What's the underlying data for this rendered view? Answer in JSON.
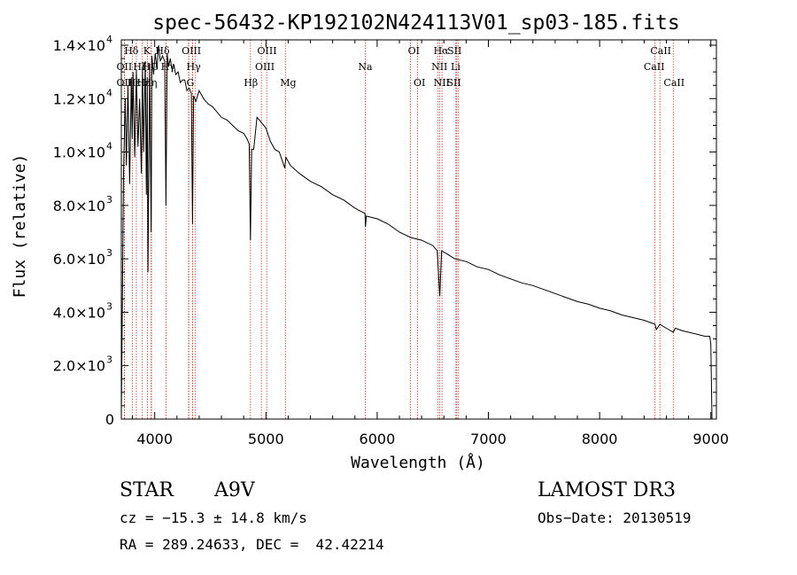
{
  "chart_data": {
    "type": "line",
    "title": "spec-56432-KP192102N424113V01_sp03-185.fits",
    "xlabel": "Wavelength (Å)",
    "ylabel": "Flux (relative)",
    "xlim": [
      3700,
      9050
    ],
    "ylim": [
      0,
      14200
    ],
    "x_ticks": [
      {
        "value": 4000,
        "label": "4000"
      },
      {
        "value": 5000,
        "label": "5000"
      },
      {
        "value": 6000,
        "label": "6000"
      },
      {
        "value": 7000,
        "label": "7000"
      },
      {
        "value": 8000,
        "label": "8000"
      },
      {
        "value": 9000,
        "label": "9000"
      }
    ],
    "y_ticks": [
      {
        "value": 0,
        "mant": "0",
        "exp": ""
      },
      {
        "value": 2000,
        "mant": "2.0×10",
        "exp": "3"
      },
      {
        "value": 4000,
        "mant": "4.0×10",
        "exp": "3"
      },
      {
        "value": 6000,
        "mant": "6.0×10",
        "exp": "3"
      },
      {
        "value": 8000,
        "mant": "8.0×10",
        "exp": "3"
      },
      {
        "value": 10000,
        "mant": "1.0×10",
        "exp": "4"
      },
      {
        "value": 12000,
        "mant": "1.2×10",
        "exp": "4"
      },
      {
        "value": 14000,
        "mant": "1.4×10",
        "exp": "4"
      }
    ],
    "series": [
      {
        "name": "spectrum",
        "x": [
          3700,
          3720,
          3735,
          3745,
          3760,
          3775,
          3790,
          3798,
          3805,
          3820,
          3835,
          3850,
          3865,
          3880,
          3890,
          3900,
          3915,
          3925,
          3933,
          3940,
          3955,
          3968,
          3975,
          3990,
          4005,
          4020,
          4035,
          4050,
          4070,
          4090,
          4101,
          4112,
          4125,
          4140,
          4155,
          4170,
          4190,
          4210,
          4230,
          4250,
          4270,
          4290,
          4310,
          4330,
          4340,
          4350,
          4370,
          4400,
          4440,
          4480,
          4520,
          4560,
          4600,
          4650,
          4700,
          4750,
          4800,
          4830,
          4850,
          4861,
          4872,
          4890,
          4920,
          4960,
          5000,
          5040,
          5080,
          5120,
          5170,
          5180,
          5220,
          5300,
          5400,
          5500,
          5600,
          5700,
          5800,
          5890,
          5896,
          5902,
          6000,
          6100,
          6200,
          6300,
          6400,
          6500,
          6540,
          6563,
          6580,
          6620,
          6700,
          6800,
          6900,
          7000,
          7100,
          7200,
          7300,
          7400,
          7500,
          7600,
          7700,
          7800,
          7900,
          8000,
          8100,
          8200,
          8300,
          8400,
          8498,
          8510,
          8542,
          8560,
          8600,
          8662,
          8680,
          8750,
          8850,
          8950,
          8990,
          9000,
          9010
        ],
        "y": [
          0,
          9200,
          12000,
          9500,
          12500,
          8800,
          12800,
          10500,
          13000,
          9800,
          13100,
          10200,
          12000,
          9200,
          13200,
          10000,
          13400,
          8400,
          12800,
          5500,
          13300,
          7000,
          13600,
          12900,
          13700,
          13100,
          14000,
          13400,
          13600,
          13400,
          8000,
          13700,
          13200,
          13500,
          13100,
          13300,
          12900,
          13000,
          12600,
          12700,
          12700,
          12300,
          12400,
          12200,
          7300,
          12100,
          11900,
          12300,
          12000,
          11800,
          11700,
          11500,
          11300,
          11200,
          11000,
          10800,
          10700,
          10500,
          10300,
          6700,
          10100,
          10100,
          11300,
          11100,
          10900,
          10400,
          10100,
          10000,
          9400,
          9800,
          9500,
          9200,
          8900,
          8700,
          8400,
          8200,
          7900,
          7700,
          7200,
          7600,
          7500,
          7300,
          7000,
          6800,
          6700,
          6500,
          6300,
          4600,
          6300,
          6200,
          6000,
          5900,
          5700,
          5600,
          5400,
          5250,
          5100,
          5000,
          4850,
          4700,
          4550,
          4400,
          4300,
          4150,
          4050,
          3900,
          3800,
          3700,
          3550,
          3350,
          3550,
          3500,
          3400,
          3250,
          3400,
          3300,
          3200,
          3100,
          3100,
          2800,
          0
        ]
      }
    ],
    "lines": [
      {
        "name": "Hδ",
        "wave": 3798,
        "row": 0,
        "label_wave": 3790
      },
      {
        "name": "OII",
        "wave": 3727,
        "row": 1,
        "label_wave": 3727
      },
      {
        "name": "OII",
        "wave": 3729,
        "row": 2,
        "label_wave": 3727
      },
      {
        "name": "Hε",
        "wave": 3835,
        "row": 2,
        "label_wave": 3815
      },
      {
        "name": "Hζ",
        "wave": 3889,
        "row": 1,
        "label_wave": 3868
      },
      {
        "name": "Hη",
        "wave": 3970,
        "row": 2,
        "label_wave": 3958
      },
      {
        "name": "K",
        "wave": 3934,
        "row": 0,
        "label_wave": 3930
      },
      {
        "name": "H",
        "wave": 3968,
        "row": 1,
        "label_wave": 3925
      },
      {
        "name": "Hε",
        "wave": 3970,
        "row": 2,
        "label_wave": 3900
      },
      {
        "name": "Hδ",
        "wave": 4102,
        "row": 0,
        "label_wave": 4070
      },
      {
        "name": "G",
        "wave": 4305,
        "row": 1,
        "label_wave": 4000
      },
      {
        "name": "OIII",
        "wave": 4363,
        "row": 0,
        "label_wave": 4330
      },
      {
        "name": "Hγ",
        "wave": 4340,
        "row": 1,
        "label_wave": 4120
      },
      {
        "name": "Hγ",
        "wave": 4341,
        "row": 1,
        "label_wave": 4350
      },
      {
        "name": "G",
        "wave": 4307,
        "row": 2,
        "label_wave": 4320
      },
      {
        "name": "Hβ",
        "wave": 4861,
        "row": 2,
        "label_wave": 4865
      },
      {
        "name": "OIII",
        "wave": 4959,
        "row": 0,
        "label_wave": 5010
      },
      {
        "name": "OIII",
        "wave": 5007,
        "row": 1,
        "label_wave": 4990
      },
      {
        "name": "Mg",
        "wave": 5175,
        "row": 2,
        "label_wave": 5200
      },
      {
        "name": "Na",
        "wave": 5893,
        "row": 1,
        "label_wave": 5893
      },
      {
        "name": "OI",
        "wave": 6300,
        "row": 0,
        "label_wave": 6330
      },
      {
        "name": "OI",
        "wave": 6364,
        "row": 2,
        "label_wave": 6380
      },
      {
        "name": "Hα",
        "wave": 6563,
        "row": 0,
        "label_wave": 6575
      },
      {
        "name": "NII",
        "wave": 6548,
        "row": 1,
        "label_wave": 6560
      },
      {
        "name": "NII",
        "wave": 6583,
        "row": 2,
        "label_wave": 6580
      },
      {
        "name": "SII",
        "wave": 6716,
        "row": 0,
        "label_wave": 6695
      },
      {
        "name": "Li",
        "wave": 6708,
        "row": 1,
        "label_wave": 6705
      },
      {
        "name": "SII",
        "wave": 6731,
        "row": 2,
        "label_wave": 6690
      },
      {
        "name": "CaII",
        "wave": 8498,
        "row": 1,
        "label_wave": 8490
      },
      {
        "name": "CaII",
        "wave": 8542,
        "row": 0,
        "label_wave": 8550
      },
      {
        "name": "CaII",
        "wave": 8662,
        "row": 2,
        "label_wave": 8670
      }
    ]
  },
  "info": {
    "object_class": "STAR",
    "subclass": "A9V",
    "survey": "LAMOST DR3",
    "redshift": "cz = −15.3 ± 14.8 km/s",
    "obs_date": "Obs−Date: 20130519",
    "coords": "RA = 289.24633, DEC =  42.42214"
  },
  "colors": {
    "spectrum": "#000000",
    "line_marker": "#c0392b",
    "axis": "#000000"
  }
}
